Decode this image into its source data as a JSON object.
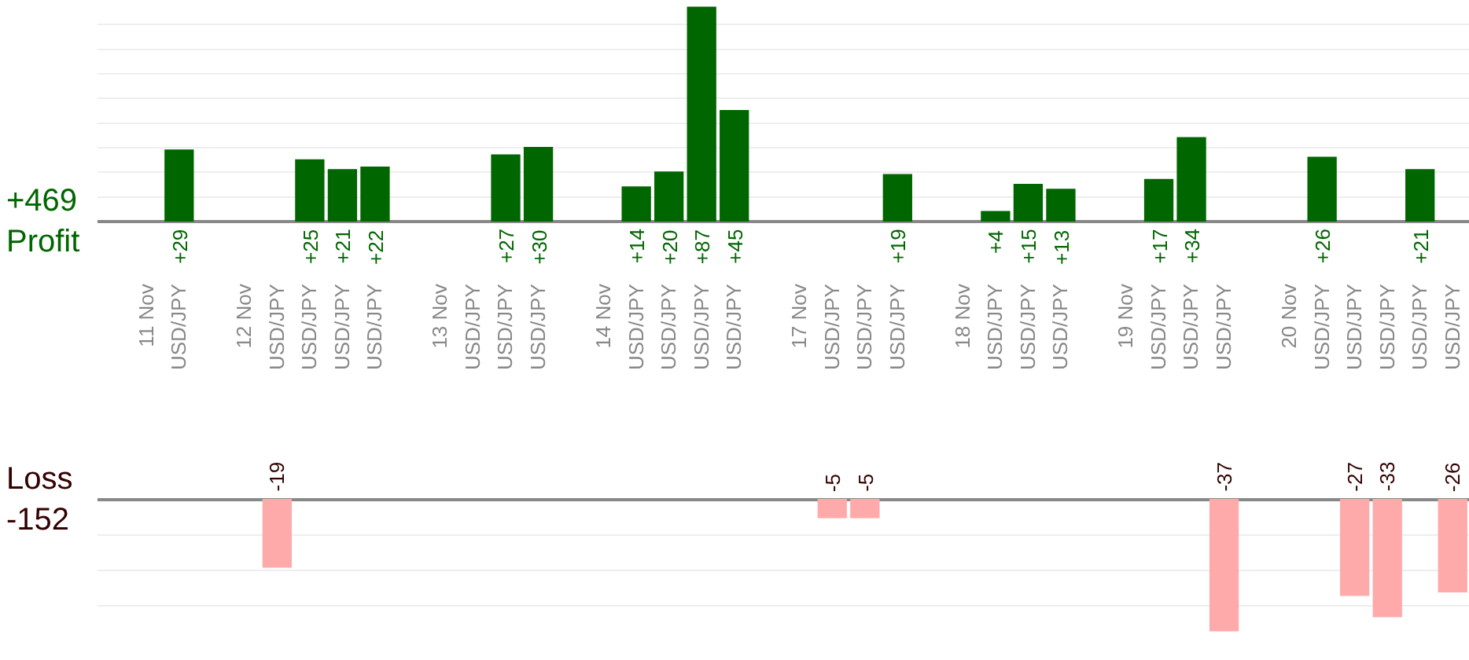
{
  "chart_data": [
    {
      "type": "bar",
      "categories": [
        null,
        "11 Nov",
        "USD/JPY",
        null,
        "12 Nov",
        "USD/JPY",
        "USD/JPY",
        "USD/JPY",
        "USD/JPY",
        null,
        "13 Nov",
        "USD/JPY",
        "USD/JPY",
        "USD/JPY",
        null,
        "14 Nov",
        "USD/JPY",
        "USD/JPY",
        "USD/JPY",
        "USD/JPY",
        null,
        "17 Nov",
        "USD/JPY",
        "USD/JPY",
        "USD/JPY",
        null,
        "18 Nov",
        "USD/JPY",
        "USD/JPY",
        "USD/JPY",
        null,
        "19 Nov",
        "USD/JPY",
        "USD/JPY",
        "USD/JPY",
        null,
        "20 Nov",
        "USD/JPY",
        "USD/JPY",
        "USD/JPY",
        "USD/JPY",
        "USD/JPY"
      ],
      "series": [
        {
          "name": "Profit",
          "color": "#006600",
          "values": [
            null,
            null,
            29,
            null,
            null,
            null,
            25,
            21,
            22,
            null,
            null,
            null,
            27,
            30,
            null,
            null,
            14,
            20,
            87,
            45,
            null,
            null,
            null,
            null,
            19,
            null,
            null,
            4,
            15,
            13,
            null,
            null,
            17,
            34,
            null,
            null,
            null,
            26,
            null,
            null,
            21,
            null
          ],
          "value_labels": [
            null,
            null,
            "+29",
            null,
            null,
            null,
            "+25",
            "+21",
            "+22",
            null,
            null,
            null,
            "+27",
            "+30",
            null,
            null,
            "+14",
            "+20",
            "+87",
            "+45",
            null,
            null,
            null,
            null,
            "+19",
            null,
            null,
            "+4",
            "+15",
            "+13",
            null,
            null,
            "+17",
            "+34",
            null,
            null,
            null,
            "+26",
            null,
            null,
            "+21",
            null
          ]
        }
      ],
      "annotations": [
        "+469"
      ],
      "ylim": [
        0,
        90
      ],
      "yticks": [
        {
          "value": 10,
          "label": null
        },
        {
          "value": 20,
          "label": null
        },
        {
          "value": 30,
          "label": null
        },
        {
          "value": 40,
          "label": null
        },
        {
          "value": 50,
          "label": null
        },
        {
          "value": 60,
          "label": null
        },
        {
          "value": 70,
          "label": null
        },
        {
          "value": 80,
          "label": null
        }
      ],
      "grid": "y",
      "tick_labels": "x"
    },
    {
      "type": "bar",
      "categories": [
        null,
        null,
        null,
        null,
        null,
        null,
        null,
        null,
        null,
        null,
        null,
        null,
        null,
        null,
        null,
        null,
        null,
        null,
        null,
        null,
        null,
        null,
        null,
        null,
        null,
        null,
        null,
        null,
        null,
        null,
        null,
        null,
        null,
        null,
        null,
        null,
        null,
        null,
        null,
        null,
        null,
        null
      ],
      "series": [
        {
          "name": "Loss",
          "color": "#ffaaaa",
          "values": [
            null,
            null,
            null,
            null,
            null,
            -19,
            null,
            null,
            null,
            null,
            null,
            null,
            null,
            null,
            null,
            null,
            null,
            null,
            null,
            null,
            null,
            null,
            -5,
            -5,
            null,
            null,
            null,
            null,
            null,
            null,
            null,
            null,
            null,
            null,
            -37,
            null,
            null,
            null,
            -27,
            -33,
            null,
            -26
          ]
        }
      ],
      "annotations": [
        "-152"
      ],
      "data_labels": true,
      "yticks": [
        {
          "value": -10,
          "label": null
        },
        {
          "value": -20,
          "label": null
        },
        {
          "value": -30,
          "label": null
        }
      ],
      "grid": "y",
      "tick_labels": false
    }
  ]
}
